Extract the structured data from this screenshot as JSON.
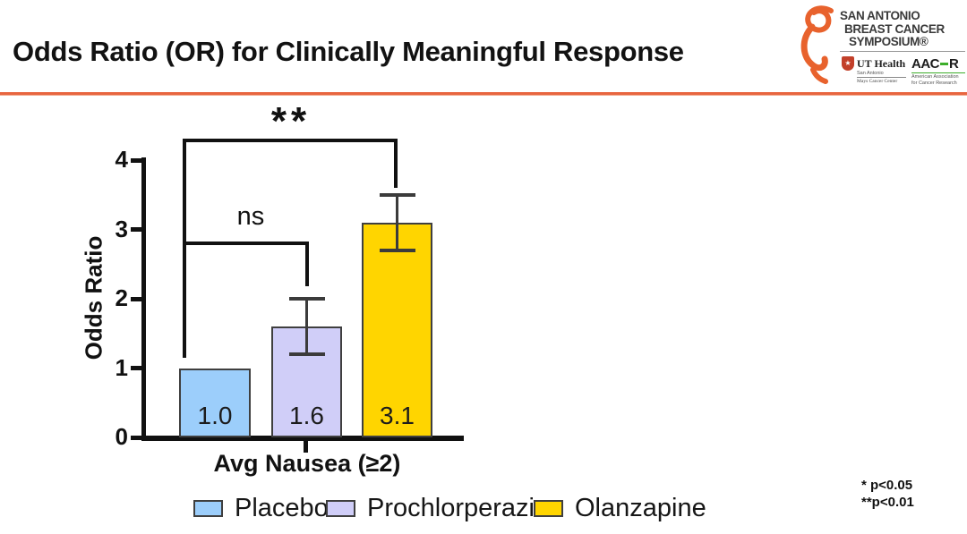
{
  "slide": {
    "title": "Odds Ratio (OR) for Clinically Meaningful Response",
    "accent_color": "#E8653F"
  },
  "logo": {
    "ribbon_icon": "breast-cancer-ribbon",
    "ribbon_color": "#E8622D",
    "symposium_line1": "SAN ANTONIO",
    "symposium_line2": "BREAST CANCER",
    "symposium_line3": "SYMPOSIUM®",
    "ut_health": {
      "name": "UT Health",
      "sub1": "San Antonio",
      "sub2": "Mays Cancer Center"
    },
    "aacr": {
      "name_left": "AAC",
      "name_right": "R",
      "sub1": "American Association",
      "sub2": "for Cancer Research",
      "accent_color": "#3DAE2B"
    }
  },
  "chart_data": {
    "type": "bar",
    "title": "",
    "xlabel": "Avg Nausea (≥2)",
    "ylabel": "Odds Ratio",
    "ylim": [
      0,
      4
    ],
    "yticks": [
      0,
      1,
      2,
      3,
      4
    ],
    "grid": false,
    "legend_position": "bottom",
    "categories": [
      "Avg Nausea (≥2)"
    ],
    "series": [
      {
        "name": "Placebo",
        "value": 1.0,
        "label": "1.0",
        "color": "#9CCEFB",
        "error_low": null,
        "error_high": null
      },
      {
        "name": "Prochlorperazine",
        "value": 1.6,
        "label": "1.6",
        "color": "#D0CEF8",
        "error_low": 1.2,
        "error_high": 2.0
      },
      {
        "name": "Olanzapine",
        "value": 3.1,
        "label": "3.1",
        "color": "#FFD500",
        "error_low": 2.7,
        "error_high": 3.5
      }
    ],
    "annotations": [
      {
        "type": "significance",
        "label": "ns",
        "from": "Placebo",
        "to": "Prochlorperazine"
      },
      {
        "type": "significance",
        "label": "**",
        "from": "Placebo",
        "to": "Olanzapine"
      }
    ]
  },
  "footnote": {
    "line1": "* p<0.05",
    "line2": "**p<0.01"
  }
}
